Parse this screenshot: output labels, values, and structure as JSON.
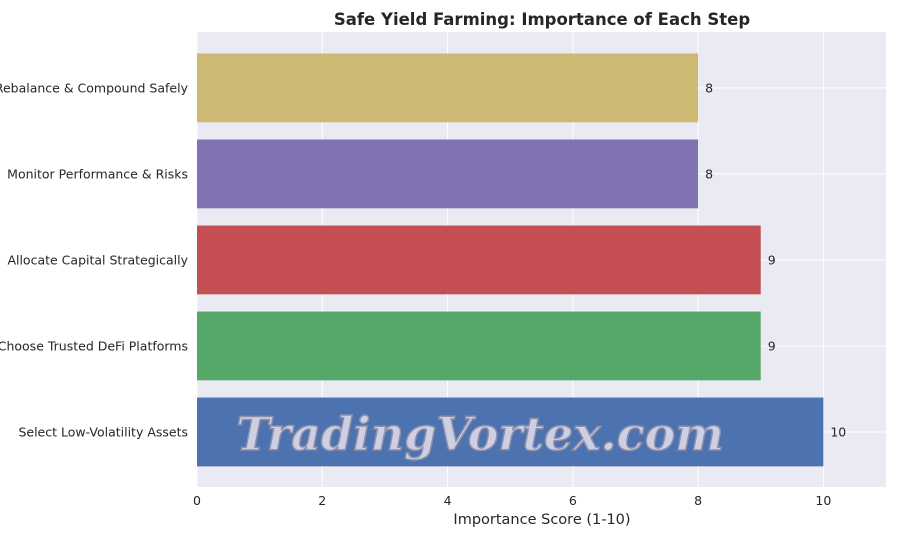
{
  "chart_data": {
    "type": "bar",
    "orientation": "horizontal",
    "title": "Safe Yield Farming: Importance of Each Step",
    "xlabel": "Importance Score (1-10)",
    "ylabel": "",
    "categories": [
      "Select Low-Volatility Assets",
      "Choose Trusted DeFi Platforms",
      "Allocate Capital Strategically",
      "Monitor Performance & Risks",
      "Rebalance & Compound Safely"
    ],
    "values": [
      10,
      9,
      9,
      8,
      8
    ],
    "data_labels": [
      "10",
      "9",
      "9",
      "8",
      "8"
    ],
    "colors": [
      "#4c72b0",
      "#55a868",
      "#c44e52",
      "#8172b2",
      "#ccb974"
    ],
    "xlim": [
      0,
      11
    ],
    "xticks": [
      0,
      2,
      4,
      6,
      8,
      10
    ],
    "grid": true,
    "background": "#eaeaf2"
  },
  "watermark": "TradingVortex.com"
}
